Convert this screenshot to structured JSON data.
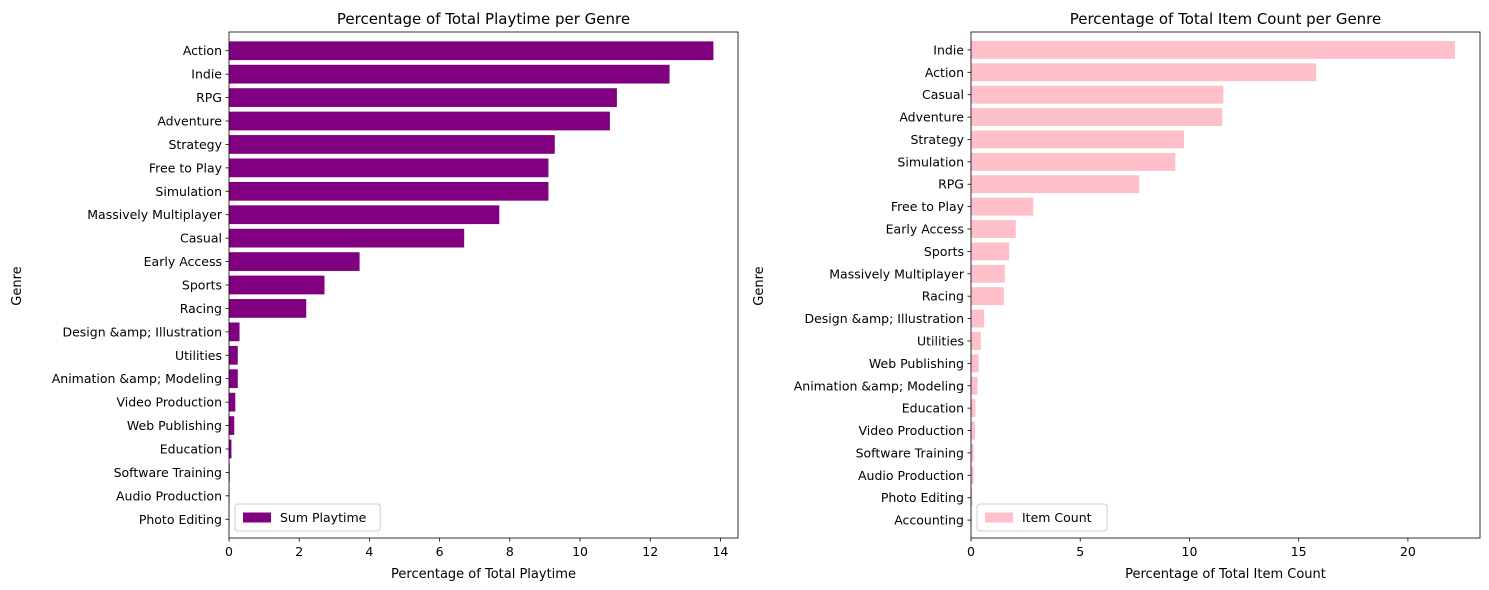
{
  "chart_data": [
    {
      "type": "bar",
      "orientation": "horizontal",
      "title": "Percentage of Total Playtime per Genre",
      "xlabel": "Percentage of Total Playtime",
      "ylabel": "Genre",
      "xlim": [
        0,
        14.5
      ],
      "xticks": [
        0,
        2,
        4,
        6,
        8,
        10,
        12,
        14
      ],
      "grid": false,
      "legend_position": "lower-left",
      "color": "#800080",
      "categories": [
        "Action",
        "Indie",
        "RPG",
        "Adventure",
        "Strategy",
        "Free to Play",
        "Simulation",
        "Massively Multiplayer",
        "Casual",
        "Early Access",
        "Sports",
        "Racing",
        "Design &amp; Illustration",
        "Utilities",
        "Animation &amp; Modeling",
        "Video Production",
        "Web Publishing",
        "Education",
        "Software Training",
        "Audio Production",
        "Photo Editing"
      ],
      "series": [
        {
          "name": "Sum Playtime",
          "values": [
            13.8,
            12.55,
            11.05,
            10.85,
            9.28,
            9.1,
            9.1,
            7.7,
            6.7,
            3.72,
            2.72,
            2.2,
            0.3,
            0.25,
            0.25,
            0.18,
            0.15,
            0.07,
            0.02,
            0.01,
            0.005
          ]
        }
      ]
    },
    {
      "type": "bar",
      "orientation": "horizontal",
      "title": "Percentage of Total Item Count per Genre",
      "xlabel": "Percentage of Total Item Count",
      "ylabel": "Genre",
      "xlim": [
        0,
        23.3
      ],
      "xticks": [
        0,
        5,
        10,
        15,
        20
      ],
      "grid": false,
      "legend_position": "lower-left",
      "color": "#ffc0cb",
      "categories": [
        "Indie",
        "Action",
        "Casual",
        "Adventure",
        "Strategy",
        "Simulation",
        "RPG",
        "Free to Play",
        "Early Access",
        "Sports",
        "Massively Multiplayer",
        "Racing",
        "Design &amp; Illustration",
        "Utilities",
        "Web Publishing",
        "Animation &amp; Modeling",
        "Education",
        "Video Production",
        "Software Training",
        "Audio Production",
        "Photo Editing",
        "Accounting"
      ],
      "series": [
        {
          "name": "Item Count",
          "values": [
            22.15,
            15.8,
            11.55,
            11.5,
            9.75,
            9.35,
            7.7,
            2.85,
            2.05,
            1.75,
            1.55,
            1.5,
            0.6,
            0.45,
            0.35,
            0.3,
            0.2,
            0.18,
            0.12,
            0.12,
            0.06,
            0.03
          ]
        }
      ]
    }
  ]
}
